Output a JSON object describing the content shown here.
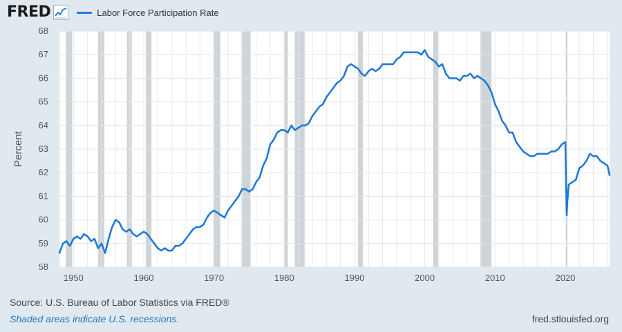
{
  "header": {
    "logo_text": "FRED",
    "logo_icon": "line-chart-icon",
    "series_label": "Labor Force Participation Rate"
  },
  "footer": {
    "source": "U.S. Bureau of Labor Statistics via FRED®",
    "source_prefix": "Source: ",
    "recession_note": "Shaded areas indicate U.S. recessions.",
    "site": "fred.stlouisfed.org"
  },
  "colors": {
    "series": "#1f7ad6",
    "recession": "#cfd4d9",
    "plot_bg": "#ffffff",
    "frame_bg": "#e1e9f0"
  },
  "chart_data": {
    "type": "line",
    "title": "",
    "xlabel": "",
    "ylabel": "Percent",
    "xlim": [
      1948.0,
      2026.3
    ],
    "ylim": [
      58,
      68
    ],
    "x_ticks": [
      1950,
      1960,
      1970,
      1980,
      1990,
      2000,
      2010,
      2020
    ],
    "y_ticks": [
      58,
      59,
      60,
      61,
      62,
      63,
      64,
      65,
      66,
      67,
      68
    ],
    "grid": true,
    "legend": "top-left",
    "recessions": [
      [
        1948.9,
        1949.8
      ],
      [
        1953.5,
        1954.4
      ],
      [
        1957.6,
        1958.3
      ],
      [
        1960.3,
        1961.1
      ],
      [
        1969.9,
        1970.9
      ],
      [
        1973.9,
        1975.2
      ],
      [
        1980.0,
        1980.5
      ],
      [
        1981.5,
        1982.9
      ],
      [
        1990.5,
        1991.2
      ],
      [
        2001.2,
        2001.9
      ],
      [
        2007.9,
        2009.5
      ],
      [
        2020.1,
        2020.3
      ]
    ],
    "series": [
      {
        "name": "Labor Force Participation Rate",
        "x": [
          1948.0,
          1948.5,
          1949.0,
          1949.5,
          1950.0,
          1950.5,
          1951.0,
          1951.5,
          1952.0,
          1952.5,
          1953.0,
          1953.5,
          1954.0,
          1954.5,
          1955.0,
          1955.5,
          1956.0,
          1956.5,
          1957.0,
          1957.5,
          1958.0,
          1958.5,
          1959.0,
          1959.5,
          1960.0,
          1960.5,
          1961.0,
          1961.5,
          1962.0,
          1962.5,
          1963.0,
          1963.5,
          1964.0,
          1964.5,
          1965.0,
          1965.5,
          1966.0,
          1966.5,
          1967.0,
          1967.5,
          1968.0,
          1968.5,
          1969.0,
          1969.5,
          1970.0,
          1970.5,
          1971.0,
          1971.5,
          1972.0,
          1972.5,
          1973.0,
          1973.5,
          1974.0,
          1974.5,
          1975.0,
          1975.5,
          1976.0,
          1976.5,
          1977.0,
          1977.5,
          1978.0,
          1978.5,
          1979.0,
          1979.5,
          1980.0,
          1980.5,
          1981.0,
          1981.5,
          1982.0,
          1982.5,
          1983.0,
          1983.5,
          1984.0,
          1984.5,
          1985.0,
          1985.5,
          1986.0,
          1986.5,
          1987.0,
          1987.5,
          1988.0,
          1988.5,
          1989.0,
          1989.5,
          1990.0,
          1990.5,
          1991.0,
          1991.5,
          1992.0,
          1992.5,
          1993.0,
          1993.5,
          1994.0,
          1994.5,
          1995.0,
          1995.5,
          1996.0,
          1996.5,
          1997.0,
          1997.5,
          1998.0,
          1998.5,
          1999.0,
          1999.5,
          2000.0,
          2000.5,
          2001.0,
          2001.5,
          2002.0,
          2002.5,
          2003.0,
          2003.5,
          2004.0,
          2004.5,
          2005.0,
          2005.5,
          2006.0,
          2006.5,
          2007.0,
          2007.5,
          2008.0,
          2008.5,
          2009.0,
          2009.5,
          2010.0,
          2010.5,
          2011.0,
          2011.5,
          2012.0,
          2012.5,
          2013.0,
          2013.5,
          2014.0,
          2014.5,
          2015.0,
          2015.5,
          2016.0,
          2016.5,
          2017.0,
          2017.5,
          2018.0,
          2018.5,
          2019.0,
          2019.5,
          2020.0,
          2020.2,
          2020.3,
          2020.5,
          2021.0,
          2021.5,
          2022.0,
          2022.5,
          2023.0,
          2023.5,
          2024.0,
          2024.5,
          2025.0,
          2025.5,
          2026.0,
          2026.3
        ],
        "values": [
          58.6,
          59.0,
          59.1,
          58.9,
          59.2,
          59.3,
          59.2,
          59.4,
          59.3,
          59.1,
          59.2,
          58.8,
          59.0,
          58.6,
          59.2,
          59.7,
          60.0,
          59.9,
          59.6,
          59.5,
          59.6,
          59.4,
          59.3,
          59.4,
          59.5,
          59.4,
          59.2,
          59.0,
          58.8,
          58.7,
          58.8,
          58.7,
          58.7,
          58.9,
          58.9,
          59.0,
          59.2,
          59.4,
          59.6,
          59.7,
          59.7,
          59.8,
          60.1,
          60.3,
          60.4,
          60.3,
          60.2,
          60.1,
          60.4,
          60.6,
          60.8,
          61.0,
          61.3,
          61.3,
          61.2,
          61.3,
          61.6,
          61.8,
          62.3,
          62.6,
          63.2,
          63.4,
          63.7,
          63.8,
          63.8,
          63.7,
          64.0,
          63.8,
          63.9,
          64.0,
          64.0,
          64.1,
          64.4,
          64.6,
          64.8,
          64.9,
          65.2,
          65.4,
          65.6,
          65.8,
          65.9,
          66.1,
          66.5,
          66.6,
          66.5,
          66.4,
          66.2,
          66.1,
          66.3,
          66.4,
          66.3,
          66.4,
          66.6,
          66.6,
          66.6,
          66.6,
          66.8,
          66.9,
          67.1,
          67.1,
          67.1,
          67.1,
          67.1,
          67.0,
          67.2,
          66.9,
          66.8,
          66.7,
          66.5,
          66.6,
          66.2,
          66.0,
          66.0,
          66.0,
          65.9,
          66.1,
          66.1,
          66.2,
          66.0,
          66.1,
          66.0,
          65.9,
          65.7,
          65.4,
          64.9,
          64.6,
          64.2,
          64.0,
          63.7,
          63.7,
          63.3,
          63.1,
          62.9,
          62.8,
          62.7,
          62.7,
          62.8,
          62.8,
          62.8,
          62.8,
          62.9,
          62.9,
          63.0,
          63.2,
          63.3,
          60.2,
          60.8,
          61.5,
          61.6,
          61.7,
          62.2,
          62.3,
          62.5,
          62.8,
          62.7,
          62.7,
          62.5,
          62.4,
          62.3,
          61.9
        ]
      }
    ]
  }
}
